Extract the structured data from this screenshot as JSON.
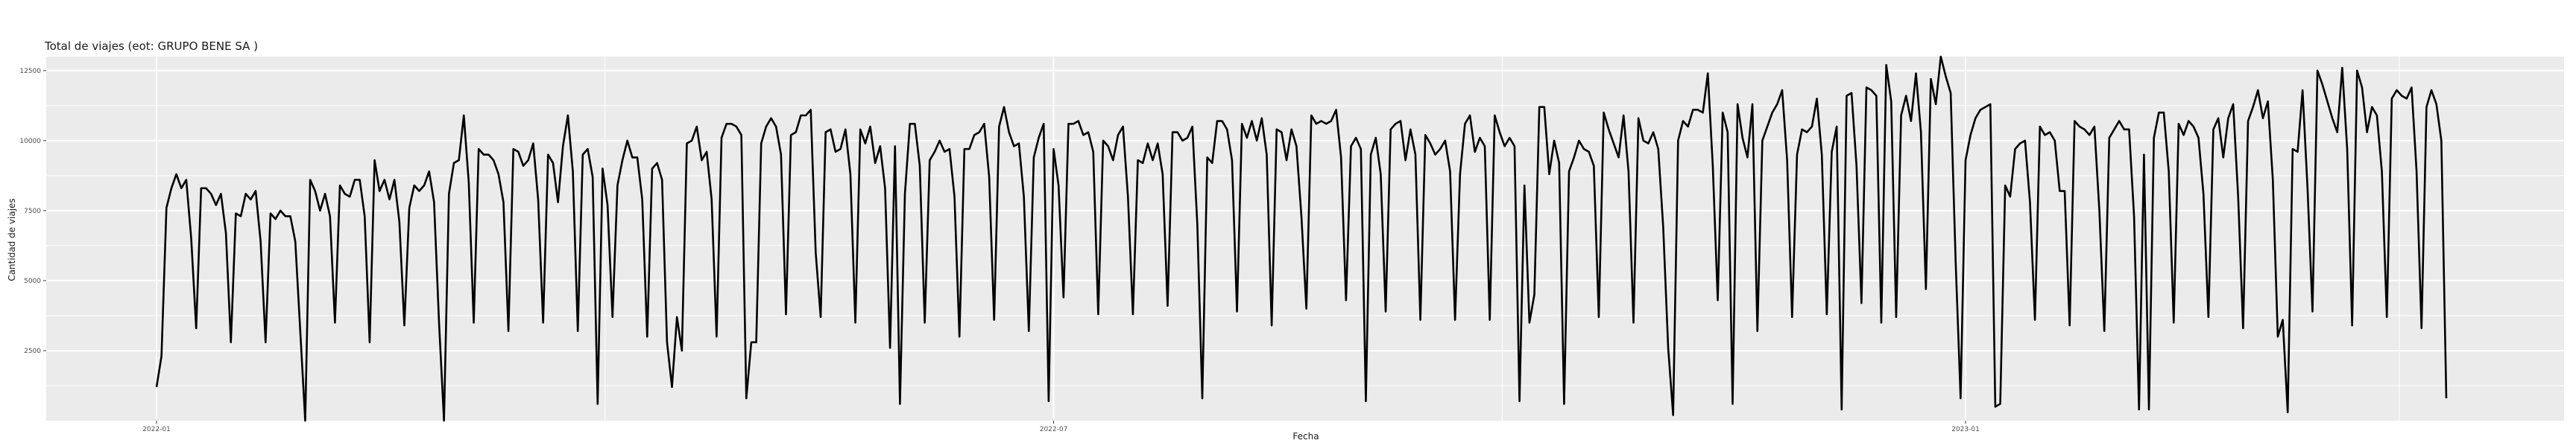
{
  "chart_data": {
    "type": "line",
    "title": "Total de viajes (eot: GRUPO BENE SA )",
    "xlabel": "Fecha",
    "ylabel": "Cantidad de viajes",
    "x_start": "2022-01-01",
    "x_ticks": [
      {
        "label": "2022-01",
        "date": "2022-01-01"
      },
      {
        "label": "2022-07",
        "date": "2022-07-01"
      },
      {
        "label": "2023-01",
        "date": "2023-01-01"
      }
    ],
    "y_ticks": [
      2500,
      5000,
      7500,
      10000,
      12500
    ],
    "y_tick_labels": [
      "2500",
      "5000",
      "7500",
      "10000",
      "12500"
    ],
    "ylim": [
      0,
      13000
    ],
    "grid": true,
    "line_color": "#000000",
    "panel_color": "#ebebeb",
    "grid_color": "#ffffff",
    "values": [
      1200,
      2300,
      7600,
      8300,
      8800,
      8300,
      8600,
      6500,
      3300,
      8300,
      8300,
      8100,
      7700,
      8100,
      6700,
      2800,
      7400,
      7300,
      8100,
      7900,
      8200,
      6400,
      2800,
      7400,
      7200,
      7500,
      7300,
      7300,
      6400,
      3200,
      0,
      8600,
      8200,
      7500,
      8100,
      7300,
      3500,
      8400,
      8100,
      8000,
      8600,
      8600,
      7300,
      2800,
      9300,
      8200,
      8600,
      7900,
      8600,
      7100,
      3400,
      7600,
      8400,
      8200,
      8400,
      8900,
      7800,
      3500,
      0,
      8100,
      9200,
      9300,
      10900,
      8500,
      3500,
      9700,
      9500,
      9500,
      9300,
      8800,
      7800,
      3200,
      9700,
      9600,
      9100,
      9300,
      9900,
      7900,
      3500,
      9500,
      9200,
      7800,
      9800,
      10900,
      8900,
      3200,
      9500,
      9700,
      8700,
      600,
      9000,
      7700,
      3700,
      8400,
      9300,
      10000,
      9400,
      9400,
      7900,
      3000,
      9000,
      9200,
      8600,
      2800,
      1200,
      3700,
      2500,
      9900,
      10000,
      10500,
      9300,
      9600,
      7900,
      3000,
      10100,
      10600,
      10600,
      10500,
      10200,
      800,
      2800,
      2800,
      9900,
      10500,
      10800,
      10500,
      9500,
      3800,
      10200,
      10300,
      10900,
      10900,
      11100,
      6000,
      3700,
      10300,
      10400,
      9600,
      9700,
      10400,
      8800,
      3500,
      10400,
      9900,
      10500,
      9200,
      9800,
      8300,
      2600,
      9800,
      600,
      8100,
      10600,
      10600,
      9100,
      3500,
      9300,
      9600,
      10000,
      9600,
      9700,
      8000,
      3000,
      9700,
      9700,
      10200,
      10300,
      10600,
      8700,
      3600,
      10500,
      11200,
      10300,
      9800,
      9900,
      8000,
      3200,
      9400,
      10100,
      10600,
      700,
      9700,
      8400,
      4400,
      10600,
      10600,
      10700,
      10200,
      10300,
      9600,
      3800,
      10000,
      9800,
      9300,
      10200,
      10500,
      8000,
      3800,
      9300,
      9200,
      9900,
      9300,
      9900,
      8800,
      4100,
      10300,
      10300,
      10000,
      10100,
      10500,
      7000,
      800,
      9400,
      9200,
      10700,
      10700,
      10400,
      9300,
      3900,
      10600,
      10100,
      10700,
      10000,
      10800,
      9500,
      3400,
      10400,
      10300,
      9300,
      10400,
      9800,
      7300,
      4000,
      10900,
      10600,
      10700,
      10600,
      10700,
      11100,
      9400,
      4300,
      9800,
      10100,
      9700,
      700,
      9500,
      10100,
      8800,
      3900,
      10400,
      10600,
      10700,
      9300,
      10400,
      9500,
      3600,
      10200,
      9900,
      9500,
      9700,
      10000,
      8900,
      3600,
      8800,
      10600,
      10900,
      9600,
      10100,
      9800,
      3600,
      10900,
      10300,
      9800,
      10100,
      9800,
      700,
      8400,
      3500,
      4500,
      11200,
      11200,
      8800,
      10000,
      9200,
      600,
      8900,
      9400,
      10000,
      9700,
      9600,
      9100,
      3700,
      11000,
      10400,
      9900,
      9400,
      10900,
      8900,
      3500,
      10800,
      10000,
      9900,
      10300,
      9700,
      6900,
      2600,
      200,
      10000,
      10700,
      10500,
      11100,
      11100,
      11000,
      12400,
      9100,
      4300,
      11000,
      10300,
      600,
      11300,
      10100,
      9400,
      11300,
      3200,
      10000,
      10500,
      11000,
      11300,
      11800,
      9300,
      3700,
      9500,
      10400,
      10300,
      10500,
      11500,
      9500,
      3800,
      9600,
      10500,
      400,
      11600,
      11700,
      9100,
      4200,
      11900,
      11800,
      11600,
      3500,
      12700,
      11400,
      3700,
      10900,
      11600,
      10700,
      12400,
      10300,
      4700,
      12200,
      11300,
      13000,
      12300,
      11700,
      5700,
      800,
      9300,
      10200,
      10800,
      11100,
      11200,
      11300,
      500,
      600,
      8400,
      8000,
      9700,
      9900,
      10000,
      7800,
      3600,
      10500,
      10200,
      10300,
      10000,
      8200,
      8200,
      3400,
      10700,
      10500,
      10400,
      10200,
      10500,
      7500,
      3200,
      10100,
      10400,
      10700,
      10400,
      10400,
      7300,
      400,
      9500,
      400,
      10100,
      11000,
      11000,
      8900,
      3500,
      10600,
      10200,
      10700,
      10500,
      10100,
      8100,
      3700,
      10400,
      10800,
      9400,
      10800,
      11300,
      8000,
      3300,
      10700,
      11200,
      11800,
      10800,
      11400,
      8600,
      3000,
      3600,
      300,
      9700,
      9600,
      11800,
      8300,
      3900,
      12500,
      12000,
      11400,
      10800,
      10300,
      12600,
      9700,
      3400,
      12500,
      11900,
      10300,
      11200,
      10900,
      8900,
      3700,
      11500,
      11800,
      11600,
      11500,
      11900,
      8900,
      3300,
      11200,
      11800,
      11300,
      10000,
      800
    ]
  }
}
